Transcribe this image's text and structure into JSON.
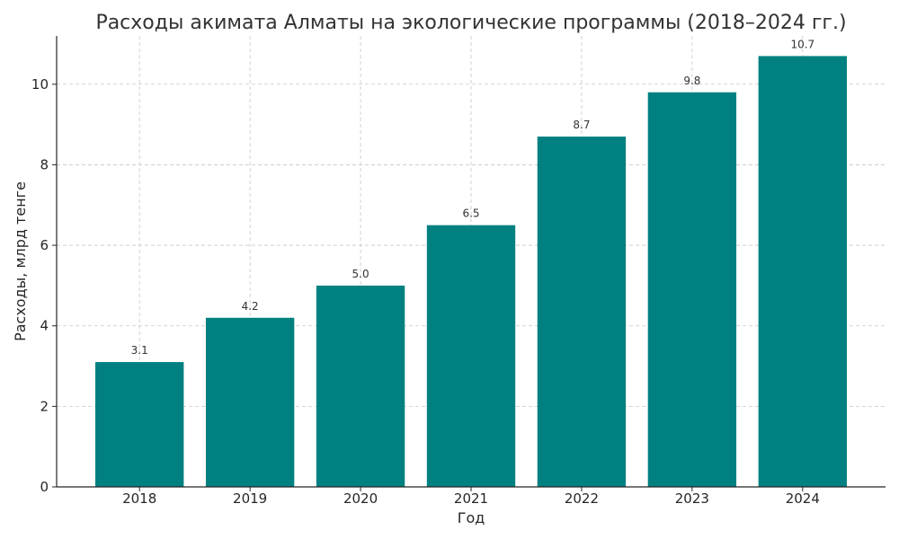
{
  "chart_data": {
    "type": "bar",
    "title": "Расходы акимата Алматы на экологические программы (2018–2024 гг.)",
    "xlabel": "Год",
    "ylabel": "Расходы, млрд тенге",
    "categories": [
      "2018",
      "2019",
      "2020",
      "2021",
      "2022",
      "2023",
      "2024"
    ],
    "values": [
      3.1,
      4.2,
      5.0,
      6.5,
      8.7,
      9.8,
      10.7
    ],
    "data_labels": [
      "3.1",
      "4.2",
      "5.0",
      "6.5",
      "8.7",
      "9.8",
      "10.7"
    ],
    "ylim": [
      0,
      11.2
    ],
    "yticks": [
      0,
      2,
      4,
      6,
      8,
      10
    ],
    "grid": true,
    "bar_color": "#008080"
  }
}
